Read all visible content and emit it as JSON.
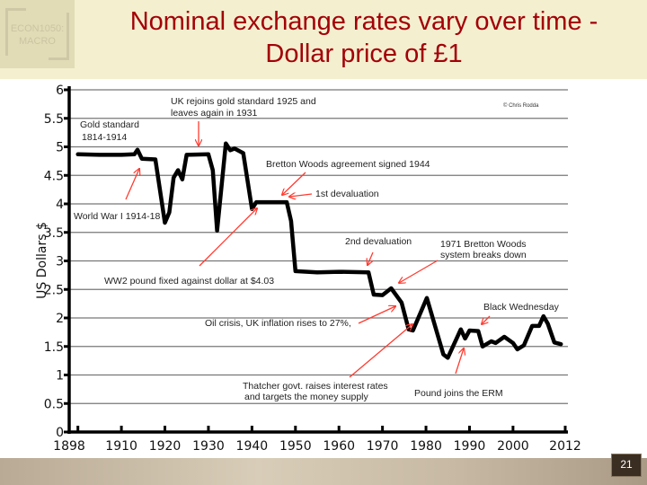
{
  "slide": {
    "title_line1": "Nominal exchange rates vary over time -",
    "title_line2": "Dollar price of £1",
    "logo_line1": "ECON1050:",
    "logo_line2": "MACRO",
    "page_number": "21"
  },
  "colors": {
    "title": "#a30008",
    "line": "#000000",
    "arrows": "#ff3b30",
    "background": "#f3efcf"
  },
  "chart_data": {
    "type": "line",
    "title": "",
    "xlabel": "",
    "ylabel": "US Dollars $",
    "xlim": [
      1898,
      2012
    ],
    "ylim": [
      0,
      6
    ],
    "grid": true,
    "x_tick_labels": [
      "1898",
      "1910",
      "1920",
      "1930",
      "1940",
      "1950",
      "1960",
      "1970",
      "1980",
      "1990",
      "2000",
      "2012"
    ],
    "x_ticks": [
      1898,
      1910,
      1920,
      1930,
      1940,
      1950,
      1960,
      1970,
      1980,
      1990,
      2000,
      2012
    ],
    "y_tick_labels": [
      "0",
      "0.5",
      "1",
      "1.5",
      "2",
      "2.5",
      "3",
      "3.5",
      "4",
      "4.5",
      "5",
      "5.5",
      "6"
    ],
    "y_ticks": [
      0,
      0.5,
      1,
      1.5,
      2,
      2.5,
      3,
      3.5,
      4,
      4.5,
      5,
      5.5,
      6
    ],
    "credit": "© Chris Rodda",
    "series": [
      {
        "x": [
          1900,
          1905,
          1910,
          1913,
          1913.7,
          1914.7,
          1917.8,
          1920,
          1921,
          1922,
          1923,
          1924,
          1925,
          1930,
          1931,
          1932,
          1934,
          1935,
          1936,
          1938,
          1940,
          1941,
          1948,
          1949,
          1950,
          1955,
          1960,
          1966.8,
          1968,
          1970,
          1972,
          1974.4,
          1976,
          1977,
          1980.2,
          1984,
          1985,
          1988,
          1989,
          1990,
          1992,
          1993,
          1995,
          1996,
          1998,
          2000,
          2001,
          2002.5,
          2004.4,
          2006,
          2007,
          2008,
          2009.5,
          2011
        ],
        "values": [
          4.87,
          4.86,
          4.86,
          4.87,
          4.95,
          4.79,
          4.78,
          3.67,
          3.85,
          4.46,
          4.59,
          4.43,
          4.86,
          4.87,
          4.59,
          3.53,
          5.06,
          4.94,
          4.97,
          4.89,
          3.91,
          4.03,
          4.03,
          3.7,
          2.82,
          2.8,
          2.81,
          2.8,
          2.41,
          2.4,
          2.52,
          2.27,
          1.8,
          1.78,
          2.35,
          1.36,
          1.3,
          1.8,
          1.64,
          1.78,
          1.77,
          1.5,
          1.59,
          1.56,
          1.67,
          1.56,
          1.45,
          1.52,
          1.86,
          1.86,
          2.03,
          1.9,
          1.57,
          1.54
        ]
      }
    ],
    "annotations": [
      {
        "id": "gold",
        "lines": [
          "Gold standard",
          "1814-1914"
        ]
      },
      {
        "id": "rejoin",
        "lines": [
          "UK rejoins gold standard 1925 and",
          "leaves again in 1931"
        ]
      },
      {
        "id": "bw",
        "lines": [
          "Bretton Woods agreement signed 1944"
        ]
      },
      {
        "id": "dev1",
        "lines": [
          "1st devaluation"
        ]
      },
      {
        "id": "ww1",
        "lines": [
          "World War I 1914-18"
        ]
      },
      {
        "id": "dev2",
        "lines": [
          "2nd devaluation"
        ]
      },
      {
        "id": "bw71",
        "lines": [
          "1971 Bretton Woods",
          "system breaks down"
        ]
      },
      {
        "id": "ww2",
        "lines": [
          "WW2 pound fixed against dollar at $4.03"
        ]
      },
      {
        "id": "oil",
        "lines": [
          "Oil crisis, UK inflation rises to 27%,"
        ]
      },
      {
        "id": "bwed",
        "lines": [
          "Black Wednesday"
        ]
      },
      {
        "id": "thatcher",
        "lines": [
          "Thatcher govt. raises interest rates",
          "and targets the money supply"
        ]
      },
      {
        "id": "erm",
        "lines": [
          "Pound joins the ERM"
        ]
      }
    ]
  }
}
